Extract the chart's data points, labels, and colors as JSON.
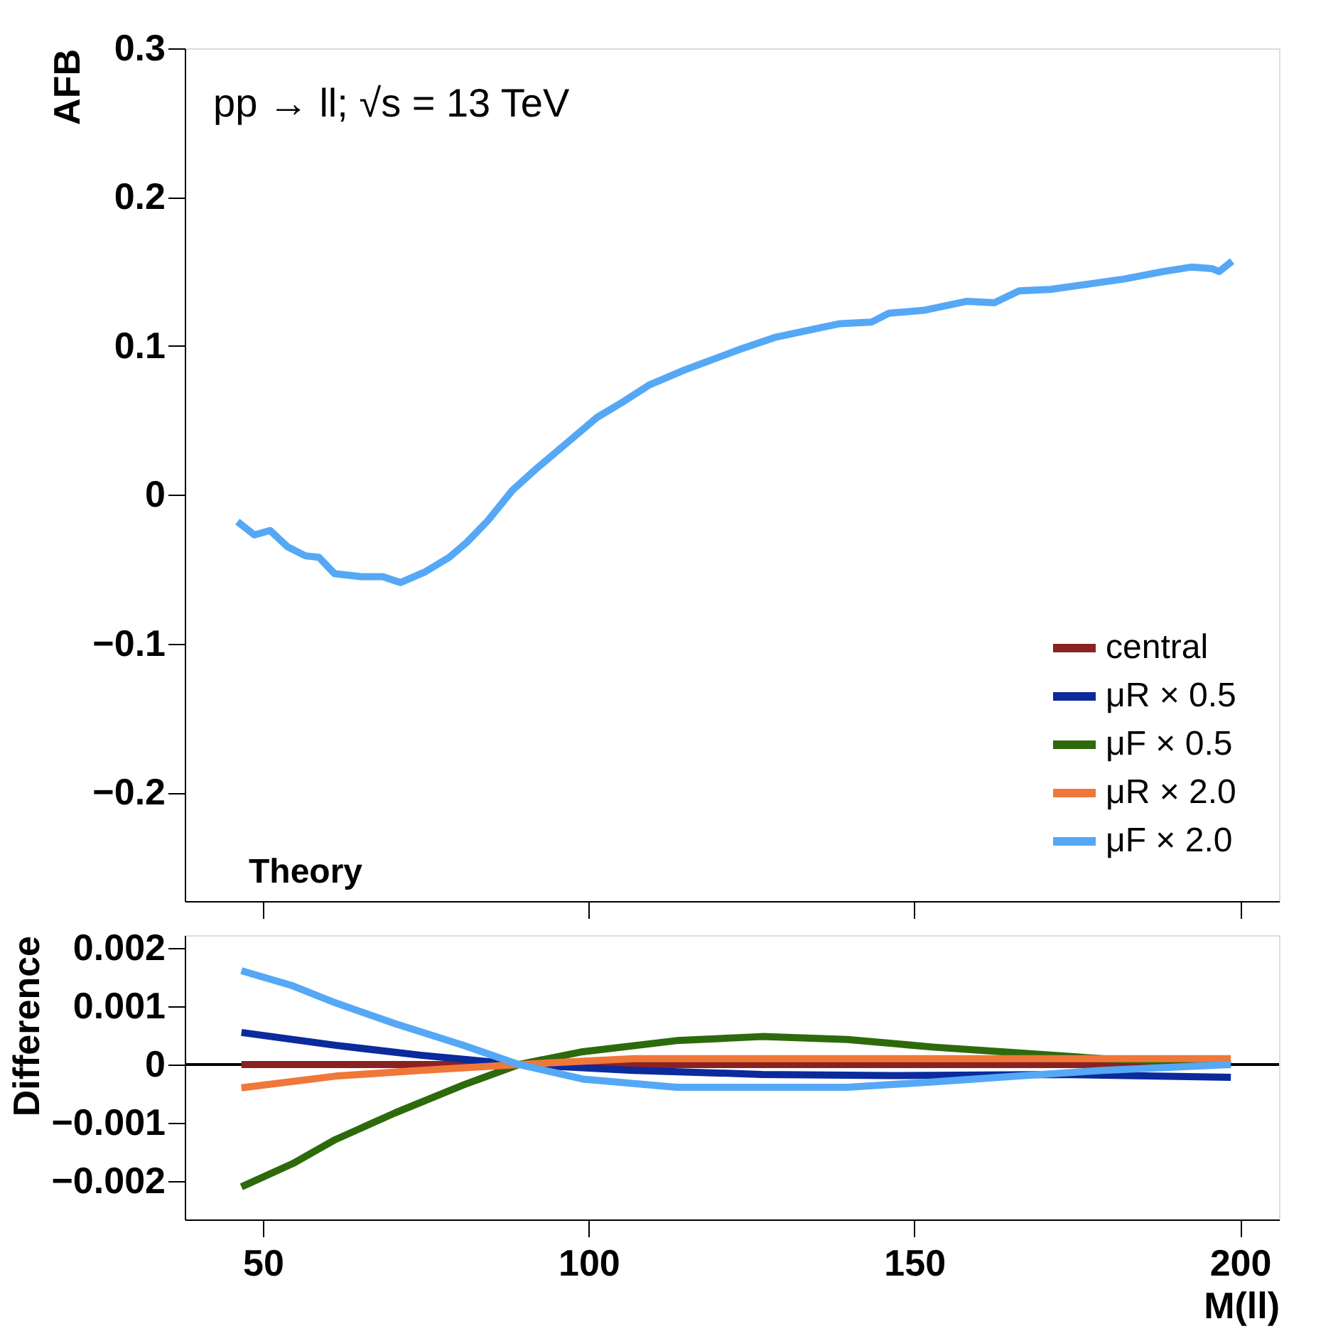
{
  "chart_data": [
    {
      "type": "line",
      "ylabel": "AFB",
      "xlim": [
        38,
        206
      ],
      "ylim": [
        -0.273,
        0.3
      ],
      "yticks": [
        -0.2,
        -0.1,
        0,
        0.1,
        0.2,
        0.3
      ],
      "xticks": [
        {
          "value": 50,
          "label": null
        },
        {
          "value": 100,
          "label": null
        },
        {
          "value": 150,
          "label": null
        },
        {
          "value": 200,
          "label": null
        }
      ],
      "tick_labels": "y",
      "grid": false,
      "legend": "bottom right",
      "line_style": "solid",
      "marker": "none",
      "annotations": [
        "pp → ll; √s = 13 TeV",
        "Theory"
      ],
      "x": [
        46.1,
        48.7,
        51.1,
        53.8,
        56.5,
        58.6,
        61,
        65.1,
        68.4,
        71.1,
        74.8,
        78.6,
        81.3,
        84.6,
        88.3,
        92.1,
        95.9,
        101.3,
        105.1,
        109.4,
        114.8,
        123.4,
        128.8,
        134.2,
        138.6,
        143.4,
        146.1,
        151.5,
        158,
        162.3,
        166.1,
        170.9,
        177.4,
        182.2,
        188.2,
        192.5,
        195.7,
        196.8,
        198.8
      ],
      "series": [
        {
          "name": "central",
          "color": "#8b2222",
          "values": [
            null,
            null,
            null,
            null,
            null,
            null,
            null,
            null,
            null,
            null,
            null,
            null,
            null,
            null,
            null,
            null,
            null,
            null,
            null,
            null,
            null,
            null,
            null,
            null,
            null,
            null,
            null,
            null,
            null,
            null,
            null,
            null,
            null,
            null,
            null,
            null,
            null,
            null,
            null
          ]
        },
        {
          "name": "μR × 0.5",
          "color": "#0b2a9c",
          "values": [
            null,
            null,
            null,
            null,
            null,
            null,
            null,
            null,
            null,
            null,
            null,
            null,
            null,
            null,
            null,
            null,
            null,
            null,
            null,
            null,
            null,
            null,
            null,
            null,
            null,
            null,
            null,
            null,
            null,
            null,
            null,
            null,
            null,
            null,
            null,
            null,
            null,
            null,
            null
          ]
        },
        {
          "name": "μF × 0.5",
          "color": "#2d6a0c",
          "values": [
            null,
            null,
            null,
            null,
            null,
            null,
            null,
            null,
            null,
            null,
            null,
            null,
            null,
            null,
            null,
            null,
            null,
            null,
            null,
            null,
            null,
            null,
            null,
            null,
            null,
            null,
            null,
            null,
            null,
            null,
            null,
            null,
            null,
            null,
            null,
            null,
            null,
            null,
            null
          ]
        },
        {
          "name": "μR × 2.0",
          "color": "#f0773a",
          "values": [
            null,
            null,
            null,
            null,
            null,
            null,
            null,
            null,
            null,
            null,
            null,
            null,
            null,
            null,
            null,
            null,
            null,
            null,
            null,
            null,
            null,
            null,
            null,
            null,
            null,
            null,
            null,
            null,
            null,
            null,
            null,
            null,
            null,
            null,
            null,
            null,
            null,
            null,
            null
          ]
        },
        {
          "name": "μF × 2.0",
          "color": "#55a8f5",
          "values": [
            -0.018,
            -0.027,
            -0.024,
            -0.035,
            -0.041,
            -0.042,
            -0.053,
            -0.055,
            -0.055,
            -0.059,
            -0.052,
            -0.042,
            -0.032,
            -0.017,
            0.003,
            0.018,
            0.032,
            0.052,
            0.062,
            0.074,
            0.084,
            0.098,
            0.106,
            0.111,
            0.115,
            0.116,
            0.122,
            0.124,
            0.13,
            0.129,
            0.137,
            0.138,
            0.142,
            0.145,
            0.15,
            0.153,
            0.152,
            0.15,
            0.157
          ]
        }
      ]
    },
    {
      "type": "line",
      "ylabel": "Difference",
      "xlabel": "M(ll)",
      "xlim": [
        38,
        206
      ],
      "ylim": [
        -0.00266,
        0.00222
      ],
      "xticks": [
        50,
        100,
        150,
        200
      ],
      "yticks": [
        -0.002,
        -0.001,
        0,
        0.001,
        0.002
      ],
      "grid": false,
      "legend": false,
      "line_style": "solid",
      "marker": "none",
      "ref_lines": [
        {
          "axis": "y",
          "value": 0,
          "color": "#000000"
        }
      ],
      "series": [
        {
          "color": "#8b2222",
          "x": [
            46.7,
            80,
            120,
            160,
            198.6
          ],
          "values": [
            0,
            0,
            0,
            0,
            0
          ]
        },
        {
          "color": "#0b2a9c",
          "x": [
            46.7,
            61.1,
            74.2,
            89.3,
            106.9,
            126.6,
            146.2,
            172.4,
            198.6
          ],
          "values": [
            0.00055,
            0.00033,
            0.00016,
            0,
            -0.0001,
            -0.00017,
            -0.00019,
            -0.00017,
            -0.00022
          ]
        },
        {
          "color": "#2d6a0c",
          "x": [
            46.7,
            54.6,
            61.1,
            70.3,
            80.8,
            89.3,
            99.1,
            113.5,
            126.6,
            139.7,
            152.8,
            165.8,
            178.9,
            198.6
          ],
          "values": [
            -0.0021,
            -0.0017,
            -0.00129,
            -0.00083,
            -0.00035,
            0,
            0.00022,
            0.00041,
            0.00048,
            0.00043,
            0.0003,
            0.0002,
            0.0001,
            0
          ]
        },
        {
          "color": "#f0773a",
          "x": [
            46.7,
            61.1,
            74.2,
            89.3,
            106.9,
            133.1,
            159.2,
            198.6
          ],
          "values": [
            -0.0004,
            -0.0002,
            -0.0001,
            0,
            0.0001,
            0.0001,
            0.0001,
            0.0001
          ]
        },
        {
          "color": "#55a8f5",
          "x": [
            46.7,
            54.6,
            61.1,
            70.3,
            80.8,
            89.3,
            99.1,
            113.5,
            126.6,
            139.7,
            152.8,
            165.8,
            178.9,
            198.6
          ],
          "values": [
            0.00161,
            0.00135,
            0.00106,
            0.0007,
            0.00033,
            0,
            -0.00025,
            -0.00039,
            -0.00039,
            -0.00039,
            -0.0003,
            -0.0002,
            -0.0001,
            0
          ]
        }
      ]
    }
  ]
}
